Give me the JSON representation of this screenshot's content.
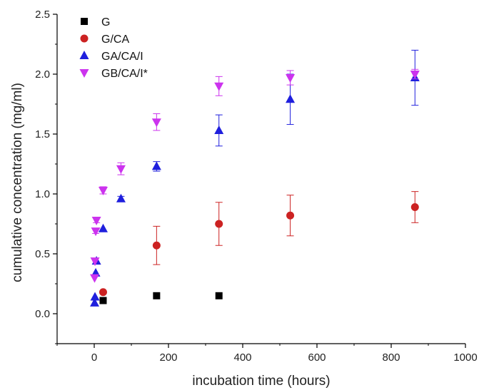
{
  "chart_data": {
    "type": "scatter",
    "title": "",
    "xlabel": "incubation time (hours)",
    "ylabel": "cumulative concentration (mg/ml)",
    "xlim": [
      -100,
      1000
    ],
    "ylim": [
      -0.25,
      2.5
    ],
    "xticks": [
      0,
      200,
      400,
      600,
      800,
      1000
    ],
    "yticks": [
      0.0,
      0.5,
      1.0,
      1.5,
      2.0,
      2.5
    ],
    "xtick_labels": [
      "0",
      "200",
      "400",
      "600",
      "800",
      "1000"
    ],
    "ytick_labels": [
      "0.0",
      "0.5",
      "1.0",
      "1.5",
      "2.0",
      "2.5"
    ],
    "grid": false,
    "legend_position": "top-left",
    "series": [
      {
        "name": "G",
        "marker": "square",
        "color": "#000000",
        "points": [
          {
            "x": 24,
            "y": 0.11,
            "err": 0
          },
          {
            "x": 168,
            "y": 0.15,
            "err": 0
          },
          {
            "x": 336,
            "y": 0.15,
            "err": 0
          }
        ]
      },
      {
        "name": "G/CA",
        "marker": "circle",
        "color": "#cc2222",
        "points": [
          {
            "x": 24,
            "y": 0.18,
            "err": 0
          },
          {
            "x": 168,
            "y": 0.57,
            "err": 0.16
          },
          {
            "x": 336,
            "y": 0.75,
            "err": 0.18
          },
          {
            "x": 528,
            "y": 0.82,
            "err": 0.17
          },
          {
            "x": 864,
            "y": 0.89,
            "err": 0.13
          }
        ]
      },
      {
        "name": "GA/CA/I",
        "marker": "triangle-up",
        "color": "#1f1fdd",
        "points": [
          {
            "x": 1,
            "y": 0.09,
            "err": 0
          },
          {
            "x": 2,
            "y": 0.14,
            "err": 0
          },
          {
            "x": 4,
            "y": 0.34,
            "err": 0
          },
          {
            "x": 6,
            "y": 0.44,
            "err": 0
          },
          {
            "x": 24,
            "y": 0.71,
            "err": 0
          },
          {
            "x": 72,
            "y": 0.96,
            "err": 0.02
          },
          {
            "x": 168,
            "y": 1.23,
            "err": 0.04
          },
          {
            "x": 336,
            "y": 1.53,
            "err": 0.13
          },
          {
            "x": 528,
            "y": 1.79,
            "err": 0.21
          },
          {
            "x": 864,
            "y": 1.97,
            "err": 0.23
          }
        ]
      },
      {
        "name": "GB/CA/I*",
        "marker": "triangle-down",
        "color": "#cc33ee",
        "points": [
          {
            "x": 1,
            "y": 0.3,
            "err": 0
          },
          {
            "x": 2,
            "y": 0.44,
            "err": 0
          },
          {
            "x": 4,
            "y": 0.69,
            "err": 0.02
          },
          {
            "x": 6,
            "y": 0.78,
            "err": 0.02
          },
          {
            "x": 24,
            "y": 1.03,
            "err": 0.03
          },
          {
            "x": 72,
            "y": 1.21,
            "err": 0.05
          },
          {
            "x": 168,
            "y": 1.6,
            "err": 0.07
          },
          {
            "x": 336,
            "y": 1.9,
            "err": 0.08
          },
          {
            "x": 528,
            "y": 1.97,
            "err": 0.06
          },
          {
            "x": 864,
            "y": 2.0,
            "err": 0.04
          }
        ]
      }
    ]
  }
}
